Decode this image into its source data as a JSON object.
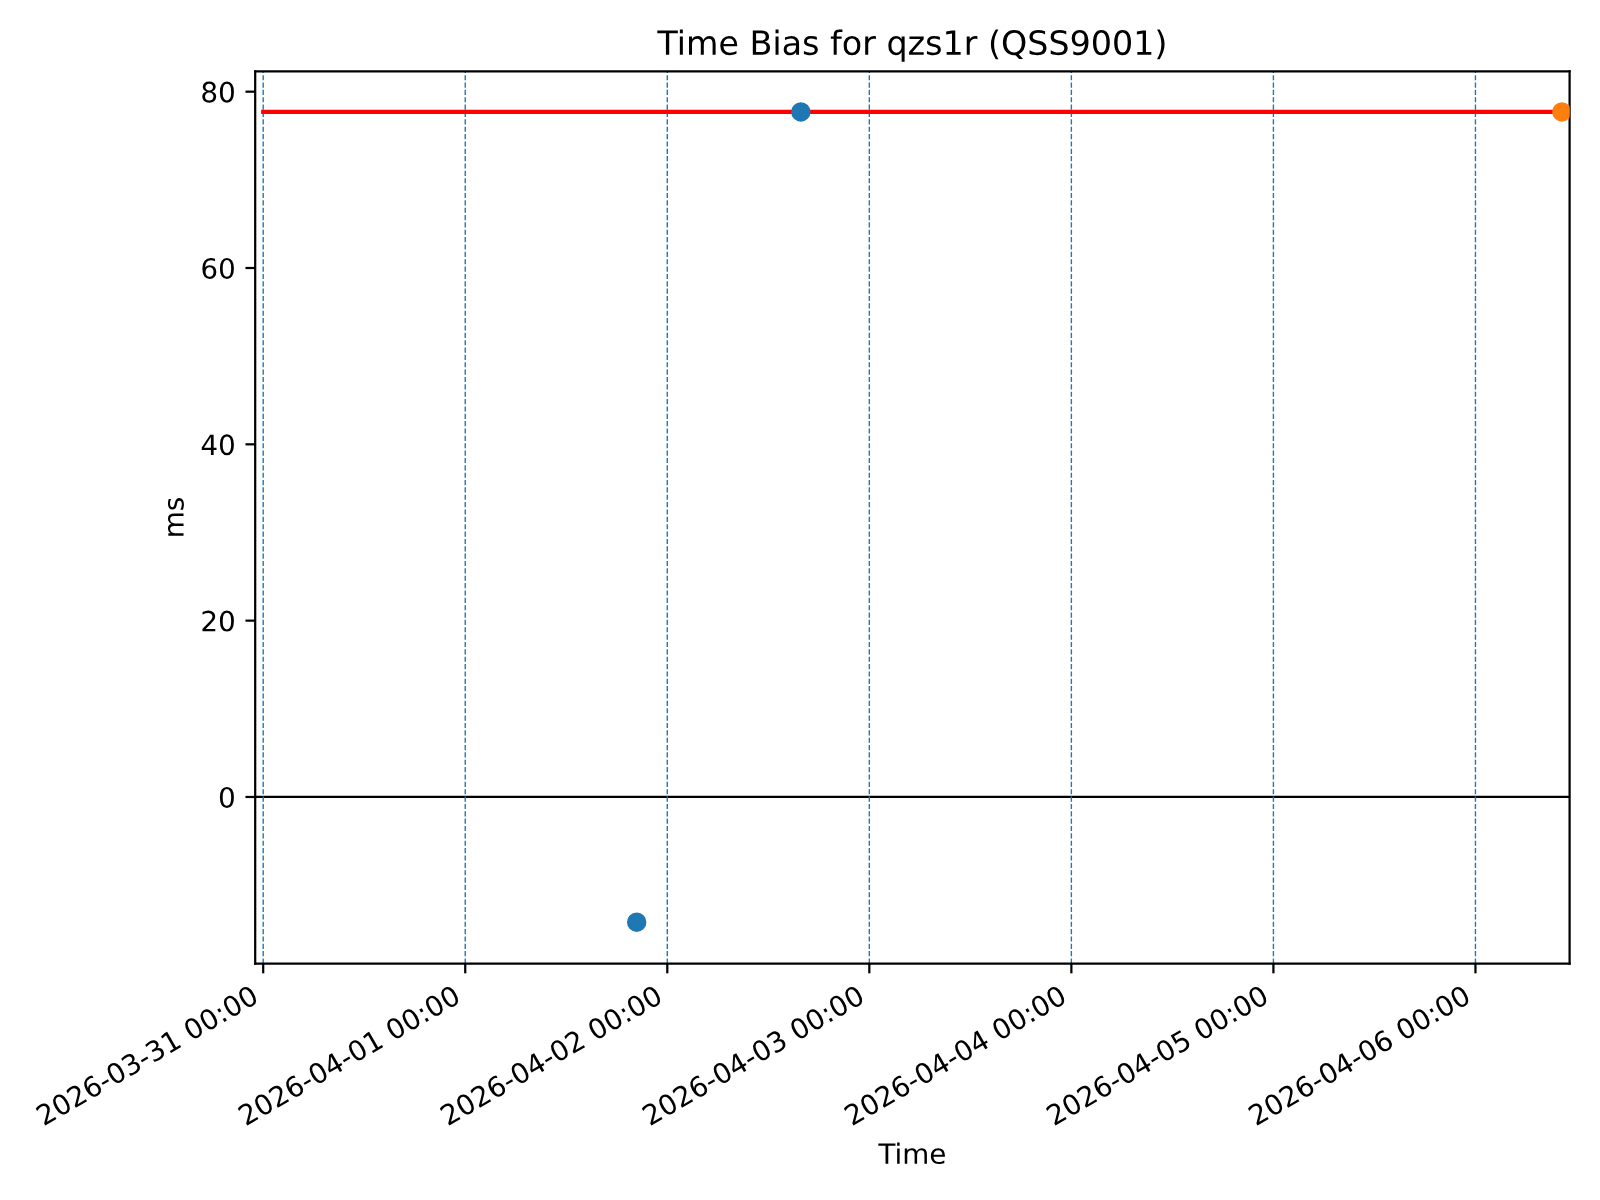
{
  "chart_data": {
    "type": "scatter",
    "title": "Time Bias for qzs1r (QSS9001)",
    "xlabel": "Time",
    "ylabel": "ms",
    "xlim": [
      "2026-03-30T23:03",
      "2026-04-06T11:11"
    ],
    "ylim": [
      -18.9,
      82.3
    ],
    "xticks": [
      {
        "value": "2026-03-31",
        "label": "2026-03-31 00:00"
      },
      {
        "value": "2026-04-01",
        "label": "2026-04-01 00:00"
      },
      {
        "value": "2026-04-02",
        "label": "2026-04-02 00:00"
      },
      {
        "value": "2026-04-03",
        "label": "2026-04-03 00:00"
      },
      {
        "value": "2026-04-04",
        "label": "2026-04-04 00:00"
      },
      {
        "value": "2026-04-05",
        "label": "2026-04-05 00:00"
      },
      {
        "value": "2026-04-06",
        "label": "2026-04-06 00:00"
      }
    ],
    "yticks": [
      0,
      20,
      40,
      60,
      80
    ],
    "marker": "circle",
    "ref_lines": [
      {
        "axis": "y",
        "value": 0,
        "color": "#000000"
      },
      {
        "axis": "x",
        "value": "2026-03-31",
        "color": "#1f77b4",
        "line_style": "dashed"
      },
      {
        "axis": "x",
        "value": "2026-04-01",
        "color": "#1f77b4",
        "line_style": "dashed"
      },
      {
        "axis": "x",
        "value": "2026-04-02",
        "color": "#1f77b4",
        "line_style": "dashed"
      },
      {
        "axis": "x",
        "value": "2026-04-03",
        "color": "#1f77b4",
        "line_style": "dashed"
      },
      {
        "axis": "x",
        "value": "2026-04-04",
        "color": "#1f77b4",
        "line_style": "dashed"
      },
      {
        "axis": "x",
        "value": "2026-04-05",
        "color": "#1f77b4",
        "line_style": "dashed"
      },
      {
        "axis": "x",
        "value": "2026-04-06",
        "color": "#1f77b4",
        "line_style": "dashed"
      }
    ],
    "series": [
      {
        "type": "line",
        "marker": "none",
        "color": "#ff0000",
        "x": [
          "2026-03-31T00:00",
          "2026-04-06T10:16"
        ],
        "values": [
          77.7,
          77.7
        ]
      },
      {
        "color": "#1f77b4",
        "x": [
          "2026-04-01T20:22",
          "2026-04-02T15:52"
        ],
        "values": [
          -14.2,
          77.7
        ]
      },
      {
        "color": "#ff7f0e",
        "x": [
          "2026-04-06T10:16"
        ],
        "values": [
          77.7
        ]
      }
    ]
  }
}
